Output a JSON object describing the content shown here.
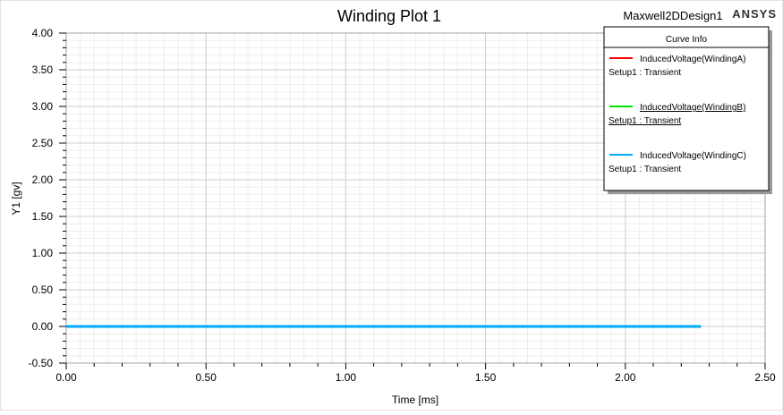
{
  "header": {
    "title": "Winding Plot 1",
    "design_name": "Maxwell2DDesign1",
    "brand": "ANSYS"
  },
  "legend": {
    "title": "Curve Info",
    "entries": [
      {
        "name": "InducedVoltage(WindingA)",
        "setup": "Setup1 : Transient",
        "color": "#ff0000",
        "selected": false
      },
      {
        "name": "InducedVoltage(WindingB)",
        "setup": "Setup1 : Transient",
        "color": "#00e600",
        "selected": true
      },
      {
        "name": "InducedVoltage(WindingC)",
        "setup": "Setup1 : Transient",
        "color": "#00aaff",
        "selected": false
      }
    ]
  },
  "chart_data": {
    "type": "line",
    "title": "Winding Plot 1",
    "xlabel": "Time [ms]",
    "ylabel": "Y1 [gv]",
    "xlim": [
      0,
      2.5
    ],
    "ylim": [
      -0.5,
      4.0
    ],
    "x_ticks": [
      "0.00",
      "0.50",
      "1.00",
      "1.50",
      "2.00",
      "2.50"
    ],
    "y_ticks": [
      "-0.50",
      "0.00",
      "0.50",
      "1.00",
      "1.50",
      "2.00",
      "2.50",
      "3.00",
      "3.50",
      "4.00"
    ],
    "grid": true,
    "legend_position": "top-right",
    "series": [
      {
        "name": "InducedVoltage(WindingA)",
        "color": "#ff0000",
        "x": [
          0,
          2.27
        ],
        "y": [
          0,
          0
        ]
      },
      {
        "name": "InducedVoltage(WindingB)",
        "color": "#00e600",
        "x": [
          0,
          2.27
        ],
        "y": [
          0,
          0
        ]
      },
      {
        "name": "InducedVoltage(WindingC)",
        "color": "#00aaff",
        "x": [
          0,
          2.27
        ],
        "y": [
          0,
          0
        ]
      }
    ]
  }
}
